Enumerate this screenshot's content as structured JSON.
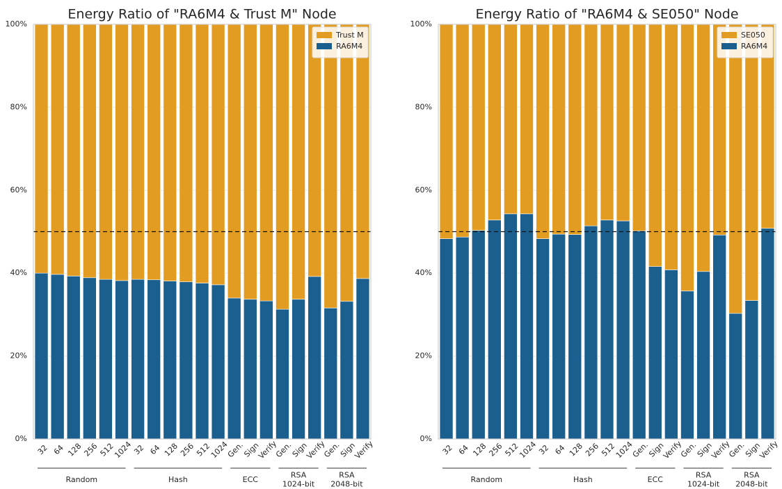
{
  "chart_data": [
    {
      "type": "stacked_bar",
      "title": "Energy Ratio of \"RA6M4 & Trust M\" Node",
      "groups": [
        {
          "label": [
            "Random"
          ],
          "categories": [
            "32",
            "64",
            "128",
            "256",
            "512",
            "1024"
          ]
        },
        {
          "label": [
            "Hash"
          ],
          "categories": [
            "32",
            "64",
            "128",
            "256",
            "512",
            "1024"
          ]
        },
        {
          "label": [
            "ECC"
          ],
          "categories": [
            "Gen.",
            "Sign",
            "Verify"
          ]
        },
        {
          "label": [
            "RSA",
            "1024-bit"
          ],
          "categories": [
            "Gen.",
            "Sign",
            "Verify"
          ]
        },
        {
          "label": [
            "RSA",
            "2048-bit"
          ],
          "categories": [
            "Gen.",
            "Sign",
            "Verify"
          ]
        }
      ],
      "series": [
        {
          "name": "Trust M",
          "color": "#e39c22",
          "values": [
            60.0,
            60.3,
            60.7,
            61.1,
            61.5,
            61.8,
            61.5,
            61.6,
            61.9,
            62.1,
            62.4,
            62.8,
            66.0,
            66.3,
            66.7,
            68.7,
            66.3,
            60.8,
            68.4,
            66.8,
            61.3
          ]
        },
        {
          "name": "RA6M4",
          "color": "#1b5f8f",
          "values": [
            40.0,
            39.7,
            39.3,
            38.9,
            38.5,
            38.2,
            38.5,
            38.4,
            38.1,
            37.9,
            37.6,
            37.2,
            34.0,
            33.7,
            33.3,
            31.3,
            33.7,
            39.2,
            31.6,
            33.2,
            38.7
          ]
        }
      ],
      "ylim": [
        0,
        100
      ],
      "yticks": [
        {
          "value": 0,
          "label": "0%"
        },
        {
          "value": 20,
          "label": "20%"
        },
        {
          "value": 40,
          "label": "40%"
        },
        {
          "value": 60,
          "label": "60%"
        },
        {
          "value": 80,
          "label": "80%"
        },
        {
          "value": 100,
          "label": "100%"
        }
      ],
      "hline": 50,
      "grid": true,
      "legend": "upper-right"
    },
    {
      "type": "stacked_bar",
      "title": "Energy Ratio of \"RA6M4 & SE050\" Node",
      "groups": [
        {
          "label": [
            "Random"
          ],
          "categories": [
            "32",
            "64",
            "128",
            "256",
            "512",
            "1024"
          ]
        },
        {
          "label": [
            "Hash"
          ],
          "categories": [
            "32",
            "64",
            "128",
            "256",
            "512",
            "1024"
          ]
        },
        {
          "label": [
            "ECC"
          ],
          "categories": [
            "Gen.",
            "Sign",
            "Verify"
          ]
        },
        {
          "label": [
            "RSA",
            "1024-bit"
          ],
          "categories": [
            "Gen.",
            "Sign",
            "Verify"
          ]
        },
        {
          "label": [
            "RSA",
            "2048-bit"
          ],
          "categories": [
            "Gen.",
            "Sign",
            "Verify"
          ]
        }
      ],
      "series": [
        {
          "name": "SE050",
          "color": "#e39c22",
          "values": [
            51.7,
            51.3,
            49.7,
            47.2,
            45.7,
            45.7,
            51.7,
            50.6,
            50.7,
            48.6,
            47.2,
            47.4,
            49.8,
            58.4,
            59.2,
            64.3,
            59.6,
            50.8,
            69.7,
            66.6,
            49.2
          ]
        },
        {
          "name": "RA6M4",
          "color": "#1b5f8f",
          "values": [
            48.3,
            48.7,
            50.3,
            52.8,
            54.3,
            54.3,
            48.3,
            49.4,
            49.3,
            51.4,
            52.8,
            52.6,
            50.2,
            41.6,
            40.8,
            35.7,
            40.4,
            49.2,
            30.3,
            33.4,
            50.8
          ]
        }
      ],
      "ylim": [
        0,
        100
      ],
      "yticks": [
        {
          "value": 0,
          "label": "0%"
        },
        {
          "value": 20,
          "label": "20%"
        },
        {
          "value": 40,
          "label": "40%"
        },
        {
          "value": 60,
          "label": "60%"
        },
        {
          "value": 80,
          "label": "80%"
        },
        {
          "value": 100,
          "label": "100%"
        }
      ],
      "hline": 50,
      "grid": true,
      "legend": "upper-right"
    }
  ]
}
